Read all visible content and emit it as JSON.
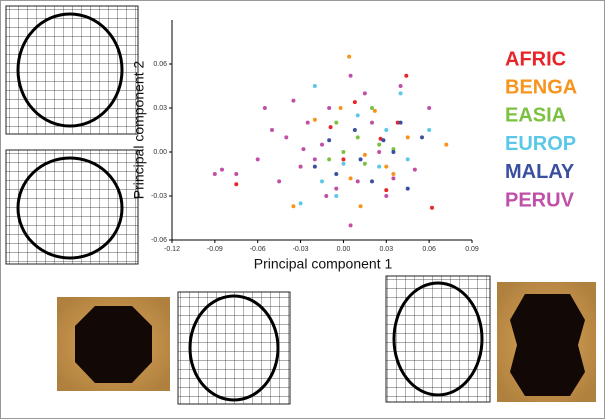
{
  "chart_data": {
    "type": "scatter",
    "x_label": "Principal component 1",
    "y_label": "Principal component 2",
    "xlim": [
      -0.12,
      0.09
    ],
    "ylim": [
      -0.06,
      0.09
    ],
    "xticks": [
      -0.12,
      -0.09,
      -0.06,
      -0.03,
      {
        "value": 0,
        "label": "0.00"
      },
      0.03,
      0.06,
      0.09
    ],
    "yticks": [
      -0.06,
      -0.03,
      {
        "value": 0,
        "label": "0.00"
      },
      0.03,
      0.06
    ],
    "series": [
      {
        "name": "AFRIC",
        "color": "#e8262a",
        "x": [
          0.044,
          0.062,
          0.038,
          0.008,
          -0.075,
          0.0,
          0.026,
          -0.009,
          0.03
        ],
        "y": [
          0.052,
          -0.038,
          0.02,
          0.034,
          -0.022,
          -0.005,
          0.009,
          0.017,
          -0.026
        ]
      },
      {
        "name": "BENGA",
        "color": "#f7941d",
        "x": [
          0.004,
          0.072,
          -0.035,
          0.012,
          -0.002,
          0.045,
          0.015,
          0.03,
          -0.02,
          0.022,
          0.035,
          0.005
        ],
        "y": [
          0.065,
          0.005,
          -0.037,
          -0.037,
          0.03,
          0.01,
          -0.002,
          -0.01,
          0.022,
          0.028,
          -0.015,
          -0.018
        ]
      },
      {
        "name": "EASIA",
        "color": "#7dc142",
        "x": [
          0.0,
          0.01,
          -0.005,
          0.025,
          0.015,
          0.02,
          -0.01,
          0.035
        ],
        "y": [
          0.0,
          0.01,
          0.02,
          0.005,
          -0.008,
          0.03,
          -0.005,
          0.002
        ]
      },
      {
        "name": "EUROP",
        "color": "#5bc8e8",
        "x": [
          0.04,
          -0.02,
          -0.03,
          0.06,
          0.025,
          -0.015,
          0.01,
          0.045,
          -0.005,
          0.03,
          0.0
        ],
        "y": [
          0.04,
          0.045,
          -0.035,
          0.015,
          -0.01,
          -0.02,
          0.025,
          -0.005,
          -0.03,
          0.015,
          -0.008
        ]
      },
      {
        "name": "MALAY",
        "color": "#3b4fa0",
        "x": [
          0.035,
          0.04,
          -0.01,
          0.02,
          0.008,
          0.045,
          -0.02,
          0.028,
          0.012,
          -0.005,
          0.055
        ],
        "y": [
          0.0,
          0.02,
          0.008,
          -0.02,
          0.015,
          -0.025,
          -0.01,
          0.008,
          -0.005,
          -0.015,
          0.01
        ]
      },
      {
        "name": "PERUV",
        "color": "#c04fa8",
        "x": [
          -0.09,
          -0.085,
          -0.075,
          -0.05,
          -0.055,
          -0.04,
          -0.035,
          -0.03,
          -0.025,
          -0.02,
          -0.015,
          -0.01,
          -0.005,
          0.005,
          0.01,
          0.015,
          0.025,
          0.03,
          0.04,
          0.05,
          0.06,
          -0.045,
          0.005,
          -0.028,
          0.02,
          -0.06,
          0.035,
          -0.012
        ],
        "y": [
          -0.015,
          -0.012,
          -0.015,
          0.015,
          0.03,
          0.01,
          0.035,
          -0.01,
          0.02,
          -0.005,
          0.005,
          0.03,
          -0.025,
          0.052,
          -0.02,
          0.04,
          0.0,
          -0.03,
          0.045,
          -0.012,
          0.03,
          -0.02,
          -0.05,
          0.002,
          0.02,
          -0.005,
          -0.018,
          -0.03
        ]
      }
    ]
  }
}
